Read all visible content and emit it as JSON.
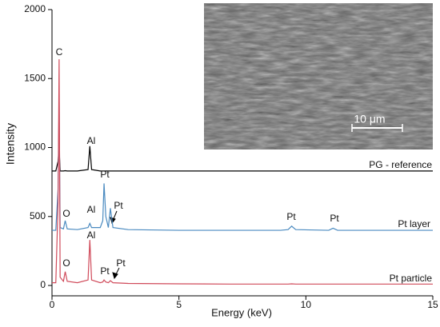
{
  "chart_data": {
    "type": "line",
    "x_label": "Energy (keV)",
    "y_label": "Intensity",
    "xlim": [
      0,
      15
    ],
    "ylim": [
      -75,
      2000
    ],
    "xticks": [
      0,
      5,
      10,
      15
    ],
    "yticks": [
      0,
      500,
      1000,
      1500,
      2000
    ],
    "x": [
      0,
      0.15,
      0.24,
      0.28,
      0.32,
      0.45,
      0.52,
      0.6,
      1.0,
      1.42,
      1.49,
      1.56,
      1.9,
      2.0,
      2.05,
      2.12,
      2.22,
      2.3,
      2.4,
      3,
      5,
      7,
      9,
      9.3,
      9.44,
      9.6,
      10.9,
      11.07,
      11.25,
      13,
      15
    ],
    "series": [
      {
        "name": "PG - reference",
        "color": "#000000",
        "values": [
          830,
          830,
          900,
          1000,
          830,
          830,
          832,
          830,
          830,
          840,
          1010,
          840,
          830,
          830,
          830,
          830,
          830,
          830,
          830,
          830,
          830,
          830,
          830,
          830,
          830,
          830,
          830,
          830,
          830,
          830,
          830
        ]
      },
      {
        "name": "Pt layer",
        "color": "#4a8ac0",
        "values": [
          400,
          400,
          700,
          1350,
          420,
          410,
          470,
          410,
          405,
          420,
          450,
          420,
          420,
          470,
          740,
          500,
          420,
          560,
          420,
          405,
          400,
          400,
          400,
          405,
          430,
          405,
          400,
          415,
          400,
          400,
          400
        ]
      },
      {
        "name": "Pt particle",
        "color": "#d04a5a",
        "values": [
          20,
          20,
          600,
          1640,
          60,
          30,
          100,
          30,
          20,
          40,
          330,
          40,
          20,
          25,
          40,
          25,
          20,
          35,
          20,
          15,
          12,
          10,
          10,
          10,
          12,
          10,
          10,
          10,
          10,
          10,
          10
        ]
      }
    ],
    "annotations": [
      "C",
      "Al",
      "O",
      "Al",
      "Pt",
      "Pt",
      "Pt",
      "Pt",
      "O",
      "Al",
      "Pt",
      "Pt",
      "10 μm"
    ]
  }
}
